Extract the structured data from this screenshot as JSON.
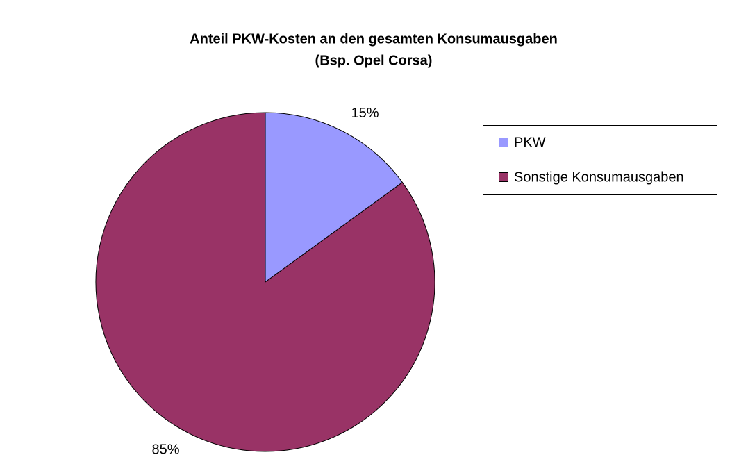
{
  "chart_data": {
    "type": "pie",
    "title": [
      "Anteil PKW-Kosten an den gesamten Konsumausgaben",
      "(Bsp. Opel Corsa)"
    ],
    "categories": [
      "PKW",
      "Sonstige Konsumausgaben"
    ],
    "values": [
      15,
      85
    ],
    "value_labels": [
      "15%",
      "85%"
    ],
    "colors": [
      "#9999ff",
      "#993366"
    ],
    "legend": "right"
  }
}
